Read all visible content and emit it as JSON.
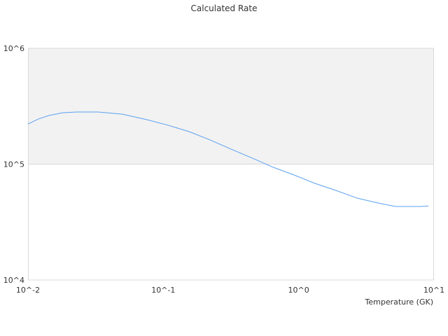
{
  "chart_data": {
    "type": "line",
    "title": "Calculated Rate",
    "xlabel": "Temperature (GK)",
    "ylabel": "",
    "xscale": "log",
    "yscale": "log",
    "xlim": [
      0.01,
      10
    ],
    "ylim": [
      10000,
      1000000
    ],
    "x_tick_labels": [
      "10^-2",
      "10^-1",
      "10^0",
      "10^1"
    ],
    "y_tick_labels": [
      "10^6",
      "10^5",
      "10^4"
    ],
    "grid": false,
    "shaded_band": [
      100000,
      1000000
    ],
    "colors": {
      "line": "#5aa0f0",
      "band": "#f2f2f2",
      "axis": "#d9d9d9"
    },
    "series": [
      {
        "x": [
          0.01,
          0.012,
          0.0143,
          0.0181,
          0.023,
          0.0329,
          0.0499,
          0.0757,
          0.108,
          0.155,
          0.221,
          0.316,
          0.452,
          0.646,
          0.925,
          1.32,
          1.89,
          2.7,
          3.86,
          5.2,
          7.89,
          9.1
        ],
        "y": [
          222000,
          246000,
          263000,
          278000,
          282000,
          282000,
          270000,
          242000,
          217000,
          191000,
          162000,
          135000,
          113000,
          94000,
          80600,
          68200,
          59300,
          50900,
          46200,
          43100,
          43100,
          43600
        ]
      }
    ]
  }
}
